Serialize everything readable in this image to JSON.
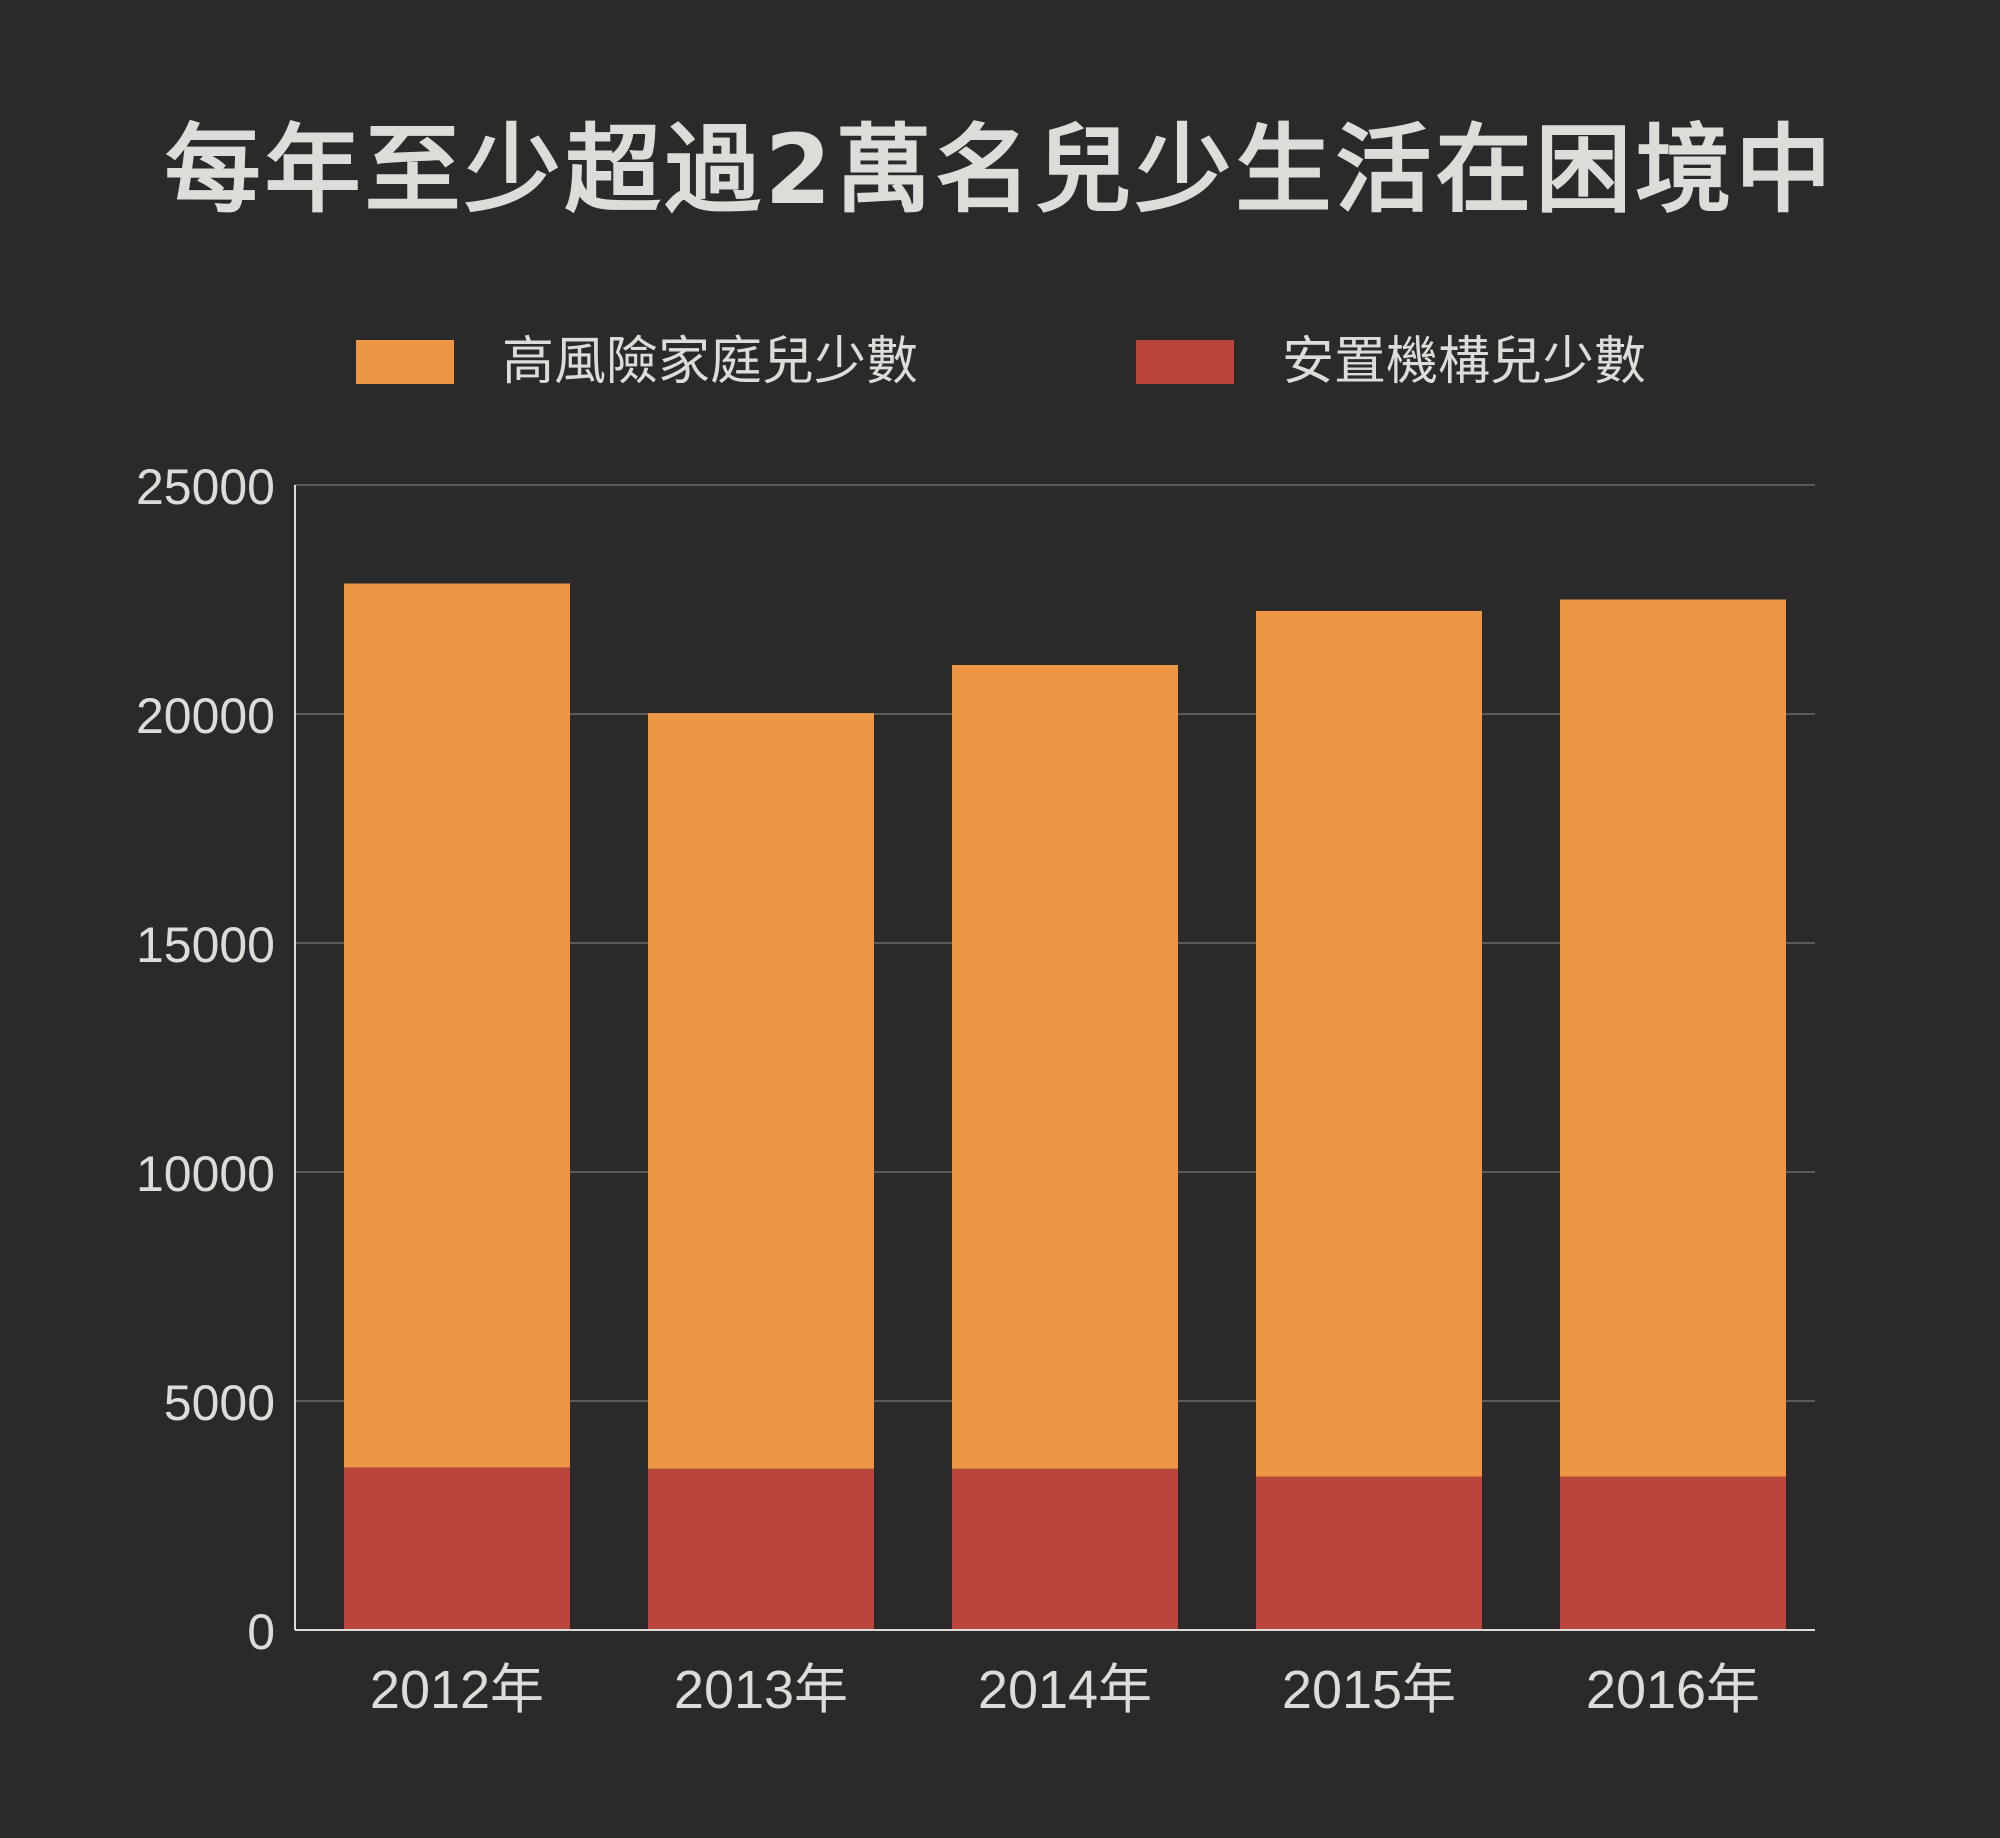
{
  "title": "每年至少超過2萬名兒少生活在困境中",
  "colors": {
    "background": "#2a2a2a",
    "text": "#dedcd8",
    "axis": "#dedcd8",
    "grid": "#5a5a5a"
  },
  "chart_data": {
    "type": "bar",
    "stacked": true,
    "categories": [
      "2012年",
      "2013年",
      "2014年",
      "2015年",
      "2016年"
    ],
    "series": [
      {
        "name": "安置機構兒少數",
        "color": "#b9453b",
        "values": [
          3550,
          3520,
          3520,
          3350,
          3350
        ]
      },
      {
        "name": "高風險家庭兒少數",
        "color": "#ed9745",
        "values": [
          19300,
          16500,
          17550,
          18900,
          19150
        ]
      }
    ],
    "legend_order": [
      1,
      0
    ],
    "legend_position": "top",
    "ylim": [
      0,
      25000
    ],
    "yticks": [
      0,
      5000,
      10000,
      15000,
      20000,
      25000
    ],
    "grid": true,
    "xlabel": "",
    "ylabel": ""
  }
}
